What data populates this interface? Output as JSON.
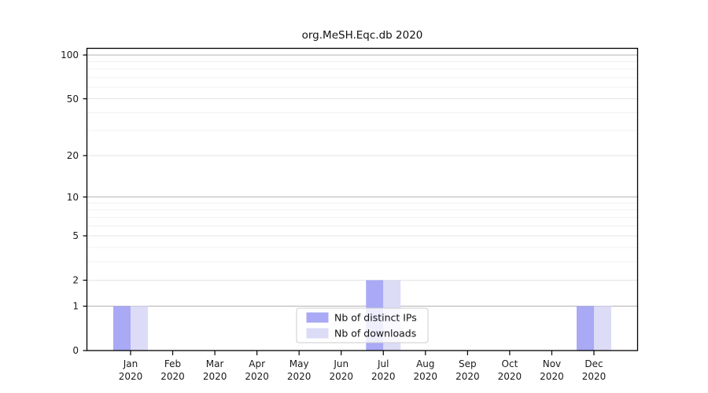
{
  "chart_data": {
    "type": "bar",
    "title": "org.MeSH.Eqc.db 2020",
    "categories": [
      "Jan 2020",
      "Feb 2020",
      "Mar 2020",
      "Apr 2020",
      "May 2020",
      "Jun 2020",
      "Jul 2020",
      "Aug 2020",
      "Sep 2020",
      "Oct 2020",
      "Nov 2020",
      "Dec 2020"
    ],
    "series": [
      {
        "name": "Nb of distinct IPs",
        "color": "#a9a9f6",
        "values": [
          1,
          0,
          0,
          0,
          0,
          0,
          2,
          0,
          0,
          0,
          0,
          1
        ]
      },
      {
        "name": "Nb of downloads",
        "color": "#dcdcf7",
        "values": [
          1,
          0,
          0,
          0,
          0,
          0,
          2,
          0,
          0,
          0,
          0,
          1
        ]
      }
    ],
    "xlabel": "",
    "ylabel": "",
    "y_scale": "log1p",
    "y_ticks": [
      0,
      1,
      2,
      5,
      10,
      20,
      50,
      100
    ],
    "y_minor_gridlines": [
      3,
      4,
      6,
      7,
      8,
      9,
      30,
      40,
      60,
      70,
      80,
      90
    ],
    "ylim": [
      0,
      110
    ],
    "grid": true,
    "legend": {
      "position": "lower center",
      "entries": [
        "Nb of distinct IPs",
        "Nb of downloads"
      ]
    }
  },
  "colors": {
    "background": "#ffffff",
    "bar_distinct_ips": "#a9a9f6",
    "bar_downloads": "#dcdcf7",
    "grid_decade": "#b3b3b3",
    "grid_labeled": "#e3e3e3",
    "grid_minor": "#f0f0f0",
    "spine": "#000000",
    "tick_label": "#1a1a1a",
    "legend_border": "#cccccc",
    "legend_background": "#ffffff"
  }
}
